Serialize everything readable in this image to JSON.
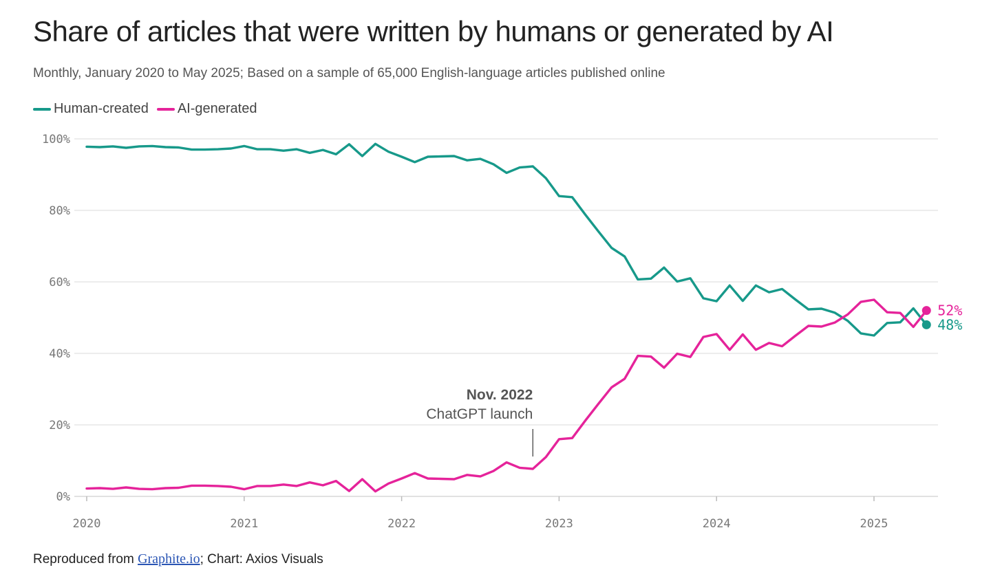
{
  "title": "Share of articles that were written by humans or generated by AI",
  "subtitle": "Monthly, January 2020 to May 2025; Based on a sample of 65,000 English-language articles published online",
  "legend": {
    "human_label": "Human-created",
    "ai_label": "AI-generated"
  },
  "source": {
    "prefix": "Reproduced from ",
    "link_text": "Graphite.io",
    "suffix": "; Chart: Axios Visuals"
  },
  "colors": {
    "human": "#17998a",
    "ai": "#e5239a",
    "grid": "#e2e2e2"
  },
  "chart_data": {
    "type": "line",
    "title": "Share of articles that were written by humans or generated by AI",
    "xlabel": "",
    "ylabel": "",
    "ylim": [
      0,
      100
    ],
    "y_ticks": [
      0,
      20,
      40,
      60,
      80,
      100
    ],
    "y_tick_labels": [
      "0%",
      "20%",
      "40%",
      "60%",
      "80%",
      "100%"
    ],
    "x_ticks": [
      "2020",
      "2021",
      "2022",
      "2023",
      "2024",
      "2025"
    ],
    "x_start": "2020-01",
    "x_end": "2025-05",
    "grid": true,
    "legend_position": "top-left",
    "series": [
      {
        "name": "Human-created",
        "color": "#17998a",
        "values": [
          97.8,
          97.7,
          97.9,
          97.5,
          97.9,
          98.0,
          97.7,
          97.6,
          97.0,
          97.0,
          97.1,
          97.3,
          98.0,
          97.1,
          97.1,
          96.7,
          97.1,
          96.1,
          96.9,
          95.7,
          98.5,
          95.2,
          98.6,
          96.4,
          95.0,
          93.5,
          95.0,
          95.1,
          95.2,
          94.0,
          94.4,
          92.9,
          90.5,
          92.0,
          92.3,
          89.0,
          84.0,
          83.7,
          78.8,
          74.1,
          69.5,
          67.1,
          60.7,
          60.9,
          64.0,
          60.1,
          61.0,
          55.4,
          54.6,
          59.0,
          54.7,
          59.0,
          57.1,
          58.0,
          55.1,
          52.3,
          52.5,
          51.4,
          49.1,
          45.6,
          45.0,
          48.5,
          48.7,
          52.6,
          48.0
        ]
      },
      {
        "name": "AI-generated",
        "color": "#e5239a",
        "values": [
          2.2,
          2.3,
          2.1,
          2.5,
          2.1,
          2.0,
          2.3,
          2.4,
          3.0,
          3.0,
          2.9,
          2.7,
          2.0,
          2.9,
          2.9,
          3.3,
          2.9,
          3.9,
          3.1,
          4.3,
          1.5,
          4.8,
          1.4,
          3.6,
          5.0,
          6.5,
          5.0,
          4.9,
          4.8,
          6.0,
          5.6,
          7.1,
          9.5,
          8.0,
          7.7,
          11.0,
          16.0,
          16.3,
          21.2,
          25.9,
          30.5,
          32.9,
          39.3,
          39.1,
          36.0,
          39.9,
          39.0,
          44.6,
          45.4,
          41.0,
          45.3,
          41.0,
          42.9,
          42.0,
          44.9,
          47.7,
          47.5,
          48.6,
          50.9,
          54.4,
          55.0,
          51.5,
          51.3,
          47.4,
          52.0
        ]
      }
    ],
    "end_labels": {
      "human": "48%",
      "ai": "52%"
    },
    "annotation": {
      "date": "2022-11",
      "line1": "Nov. 2022",
      "line2": "ChatGPT launch"
    }
  }
}
